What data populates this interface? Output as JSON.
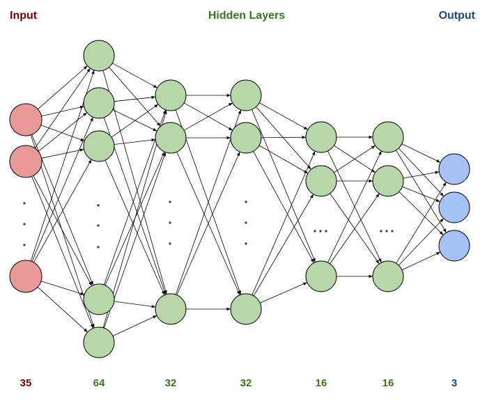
{
  "headers": {
    "input": "Input",
    "hidden": "Hidden Layers",
    "output": "Output"
  },
  "colors": {
    "input_fill": "#ea9999",
    "hidden_fill": "#b6d7a8",
    "output_fill": "#a4c2f4",
    "input_text": "#7f0000",
    "hidden_text": "#38761d",
    "output_text": "#1c4587",
    "ellipsis": "#274e13",
    "edge": "#000000"
  },
  "layers": [
    {
      "id": "input",
      "role": "input",
      "size_label": "35",
      "ellipsis": "vertical-dots"
    },
    {
      "id": "hidden-1",
      "role": "hidden",
      "size_label": "64",
      "ellipsis": "vertical-dots"
    },
    {
      "id": "hidden-2",
      "role": "hidden",
      "size_label": "32",
      "ellipsis": "vertical-dots"
    },
    {
      "id": "hidden-3",
      "role": "hidden",
      "size_label": "32",
      "ellipsis": "vertical-dots"
    },
    {
      "id": "hidden-4",
      "role": "hidden",
      "size_label": "16",
      "ellipsis": "horizontal-dots"
    },
    {
      "id": "hidden-5",
      "role": "hidden",
      "size_label": "16",
      "ellipsis": "horizontal-dots"
    },
    {
      "id": "output",
      "role": "output",
      "size_label": "3",
      "ellipsis": "none"
    }
  ]
}
